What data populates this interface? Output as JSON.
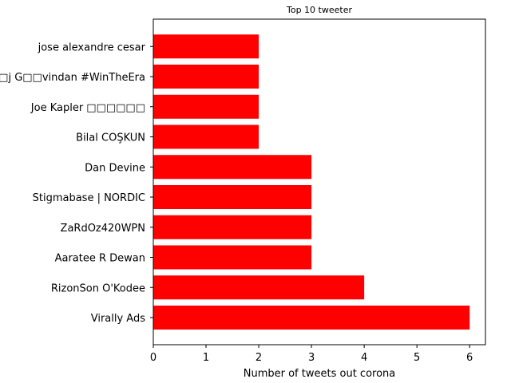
{
  "chart_data": {
    "type": "bar",
    "orientation": "horizontal",
    "title": "Top 10 tweeter",
    "xlabel": "Number of tweets out corona",
    "ylabel": "",
    "categories": [
      "Virally Ads",
      "RizonSon O'Kodee",
      "Aaratee R Dewan",
      "ZaRdOz420WPN",
      "Stigmabase | NORDIC",
      "Dan Devine",
      "Bilal COŞKUN",
      "Joe Kapler □□□□□□",
      "□j G□□vindan #WinTheEra",
      "jose alexandre cesar"
    ],
    "values": [
      6,
      4,
      3,
      3,
      3,
      3,
      2,
      2,
      2,
      2
    ],
    "xlim": [
      0,
      6.3
    ],
    "xticks": [
      0,
      1,
      2,
      3,
      4,
      5,
      6
    ],
    "bar_color": "#ff0000",
    "grid": false,
    "legend": "none"
  }
}
